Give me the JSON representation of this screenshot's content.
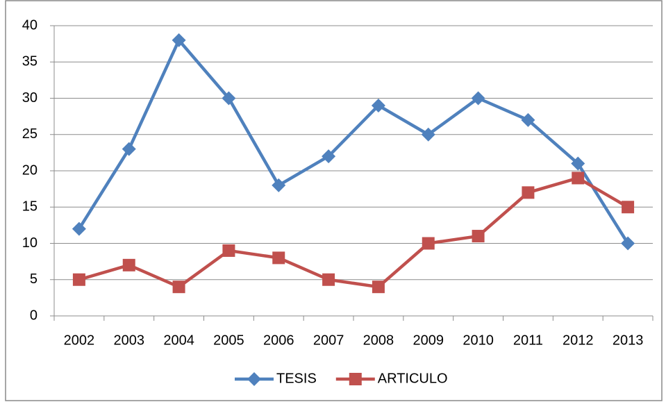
{
  "chart_data": {
    "type": "line",
    "categories": [
      "2002",
      "2003",
      "2004",
      "2005",
      "2006",
      "2007",
      "2008",
      "2009",
      "2010",
      "2011",
      "2012",
      "2013"
    ],
    "series": [
      {
        "name": "TESIS",
        "color": "#4f81bd",
        "marker": "diamond",
        "values": [
          12,
          23,
          38,
          30,
          18,
          22,
          29,
          25,
          30,
          27,
          21,
          10
        ]
      },
      {
        "name": "ARTICULO",
        "color": "#c0504d",
        "marker": "square",
        "values": [
          5,
          7,
          4,
          9,
          8,
          5,
          4,
          10,
          11,
          17,
          19,
          15
        ]
      }
    ],
    "ylim": [
      0,
      40
    ],
    "yticks": [
      0,
      5,
      10,
      15,
      20,
      25,
      30,
      35,
      40
    ],
    "grid": true,
    "legend": "bottom"
  }
}
